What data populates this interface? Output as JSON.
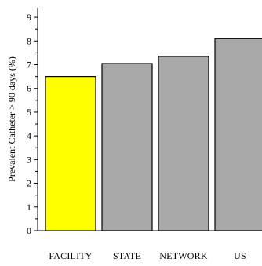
{
  "chart_data": {
    "type": "bar",
    "title": "",
    "xlabel": "",
    "ylabel": "Prevalent Catheter > 90 days (%)",
    "categories": [
      "FACILITY",
      "STATE",
      "NETWORK",
      "US"
    ],
    "values": [
      6.5,
      7.05,
      7.35,
      8.1
    ],
    "colors": [
      "#ffff00",
      "#a9a9a9",
      "#a9a9a9",
      "#a9a9a9"
    ],
    "edge_color": "#000000",
    "ylim": [
      0,
      9.4
    ],
    "yticks": [
      0,
      1,
      2,
      3,
      4,
      5,
      6,
      7,
      8,
      9
    ],
    "grid": false,
    "legend": "none"
  }
}
